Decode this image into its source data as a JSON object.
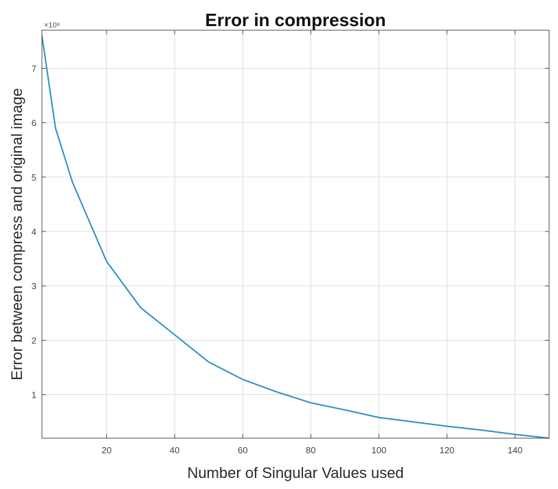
{
  "chart_data": {
    "type": "line",
    "title": "Error in compression",
    "xlabel": "Number of Singular Values used",
    "ylabel": "Error between compress and original image",
    "y_exponent_label": "×10⁸",
    "xlim": [
      1,
      150
    ],
    "ylim": [
      0.2,
      7.7
    ],
    "xticks": [
      20,
      40,
      60,
      80,
      100,
      120,
      140
    ],
    "yticks": [
      1,
      2,
      3,
      4,
      5,
      6,
      7
    ],
    "grid": true,
    "series_color": "#2f8fc0",
    "series": [
      {
        "x": [
          1,
          5,
          10,
          20,
          30,
          40,
          50,
          60,
          70,
          80,
          90,
          100,
          110,
          120,
          130,
          140,
          150
        ],
        "y": [
          7.6,
          5.9,
          4.9,
          3.45,
          2.6,
          2.1,
          1.6,
          1.28,
          1.05,
          0.85,
          0.72,
          0.58,
          0.5,
          0.42,
          0.35,
          0.27,
          0.2
        ]
      }
    ]
  }
}
